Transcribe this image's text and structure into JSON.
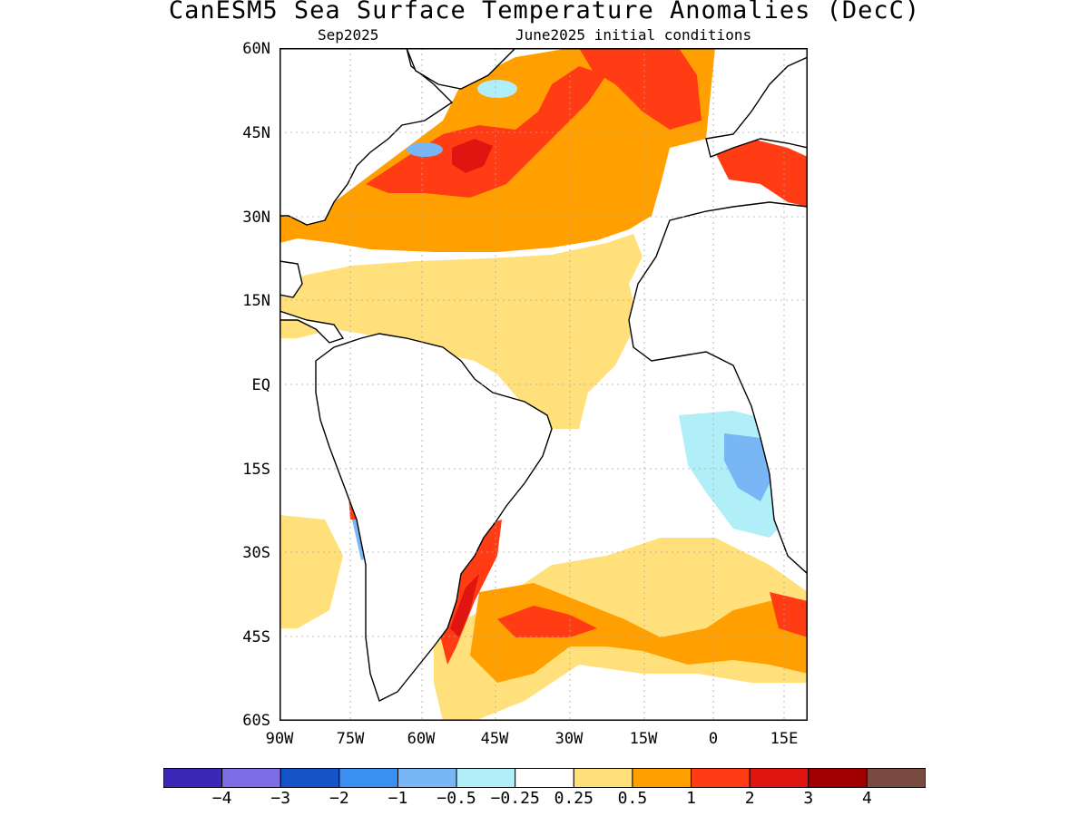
{
  "header": {
    "title": "CanESM5 Sea Surface Temperature Anomalies (DecC)",
    "valid_month": "Sep2025",
    "initial_conditions": "June2025 initial conditions"
  },
  "axes": {
    "lat_labels": [
      "60N",
      "45N",
      "30N",
      "15N",
      "EQ",
      "15S",
      "30S",
      "45S",
      "60S"
    ],
    "lon_labels": [
      "90W",
      "75W",
      "60W",
      "45W",
      "30W",
      "15W",
      "0",
      "15E"
    ]
  },
  "colorbar": {
    "colors": [
      "#3b28b8",
      "#7e6ee6",
      "#1554c8",
      "#3b8ff0",
      "#79b6f5",
      "#b0eef8",
      "#ffffff",
      "#ffe07a",
      "#ffa000",
      "#ff3c14",
      "#e01410",
      "#a00000",
      "#784a40"
    ],
    "labels": [
      "−4",
      "−3",
      "−2",
      "−1",
      "−0.5",
      "−0.25",
      "0.25",
      "0.5",
      "1",
      "2",
      "3",
      "4"
    ]
  },
  "colors": {
    "land": "#ffffff",
    "ocean_neutral": "#ffffff",
    "grid": "#aaaaaa"
  }
}
